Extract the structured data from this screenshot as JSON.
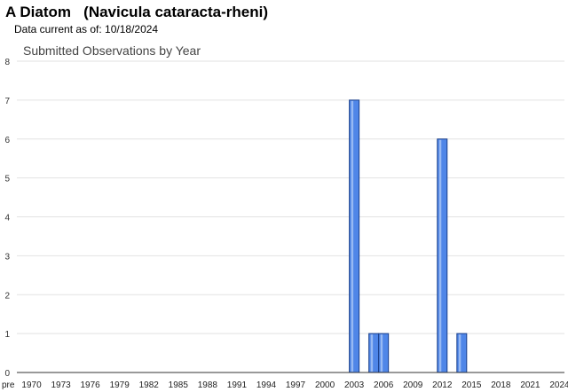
{
  "header": {
    "species_title": "A Diatom   (Navicula cataracta-rheni)",
    "data_current": "Data current as of: 10/18/2024"
  },
  "chart_data": {
    "type": "bar",
    "title": "Submitted Observations by Year",
    "xlabel": "",
    "ylabel": "",
    "ylim": [
      0,
      8
    ],
    "y_ticks": [
      0,
      1,
      2,
      3,
      4,
      5,
      6,
      7,
      8
    ],
    "grid": true,
    "legend": "none",
    "categories": [
      "pre",
      "1970",
      "1971",
      "1972",
      "1973",
      "1974",
      "1975",
      "1976",
      "1977",
      "1978",
      "1979",
      "1980",
      "1981",
      "1982",
      "1983",
      "1984",
      "1985",
      "1986",
      "1987",
      "1988",
      "1989",
      "1990",
      "1991",
      "1992",
      "1993",
      "1994",
      "1995",
      "1996",
      "1997",
      "1998",
      "1999",
      "2000",
      "2001",
      "2002",
      "2003",
      "2004",
      "2005",
      "2006",
      "2007",
      "2008",
      "2009",
      "2010",
      "2011",
      "2012",
      "2013",
      "2014",
      "2015",
      "2016",
      "2017",
      "2018",
      "2019",
      "2020",
      "2021",
      "2022",
      "2023",
      "2024"
    ],
    "values": [
      0,
      0,
      0,
      0,
      0,
      0,
      0,
      0,
      0,
      0,
      0,
      0,
      0,
      0,
      0,
      0,
      0,
      0,
      0,
      0,
      0,
      0,
      0,
      0,
      0,
      0,
      0,
      0,
      0,
      0,
      0,
      0,
      0,
      0,
      7,
      0,
      1,
      1,
      0,
      0,
      0,
      0,
      0,
      6,
      0,
      1,
      0,
      0,
      0,
      0,
      0,
      0,
      0,
      0,
      0,
      0
    ],
    "x_tick_labels": [
      "pre",
      "1970",
      "1973",
      "1976",
      "1979",
      "1982",
      "1985",
      "1988",
      "1991",
      "1994",
      "1997",
      "2000",
      "2003",
      "2006",
      "2009",
      "2012",
      "2015",
      "2018",
      "2021",
      "2024"
    ],
    "bar_color": "#4f86e8",
    "bar_stroke": "#1a3f8a"
  }
}
